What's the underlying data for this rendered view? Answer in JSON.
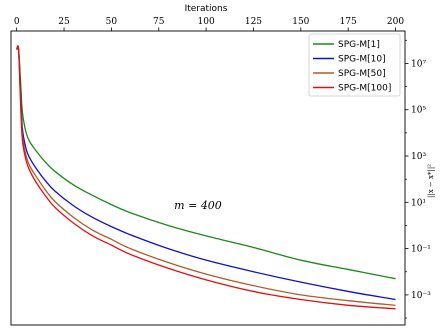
{
  "chart_data": {
    "type": "line",
    "xlabel": "Iterations",
    "ylabel": "||x − x*||²",
    "xlim": [
      -3,
      205
    ],
    "ylim_log10": [
      -4.3,
      8.4
    ],
    "yscale": "log",
    "x_ticks": [
      0,
      25,
      50,
      75,
      100,
      125,
      150,
      175,
      200
    ],
    "y_ticks": [
      {
        "exp": 7,
        "label": "10⁷"
      },
      {
        "exp": 5,
        "label": "10⁵"
      },
      {
        "exp": 3,
        "label": "10³"
      },
      {
        "exp": 1,
        "label": "10¹"
      },
      {
        "exp": -1,
        "label": "10⁻¹"
      },
      {
        "exp": -3,
        "label": "10⁻³"
      }
    ],
    "x_axis_position": "top",
    "y_axis_position": "right",
    "grid": false,
    "legend_position": "top-right",
    "annotation": "m = 400",
    "x": [
      0,
      1,
      2,
      3,
      5,
      7,
      10,
      15,
      20,
      30,
      40,
      50,
      60,
      80,
      100,
      125,
      150,
      175,
      200
    ],
    "series": [
      {
        "name": "SPG-M[1]",
        "color": "#1a8a1a",
        "log10_values": [
          7.6,
          7.6,
          6.3,
          4.9,
          4.0,
          3.6,
          3.25,
          2.75,
          2.35,
          1.75,
          1.3,
          0.9,
          0.55,
          0.0,
          -0.45,
          -0.95,
          -1.5,
          -1.9,
          -2.3
        ]
      },
      {
        "name": "SPG-M[10]",
        "color": "#1010cc",
        "log10_values": [
          7.6,
          7.6,
          5.9,
          4.2,
          3.3,
          2.9,
          2.5,
          1.95,
          1.5,
          0.85,
          0.35,
          -0.05,
          -0.4,
          -1.0,
          -1.5,
          -2.0,
          -2.45,
          -2.85,
          -3.2
        ]
      },
      {
        "name": "SPG-M[50]",
        "color": "#b05a28",
        "log10_values": [
          7.6,
          7.6,
          5.6,
          3.9,
          3.0,
          2.55,
          2.15,
          1.55,
          1.05,
          0.35,
          -0.2,
          -0.6,
          -1.0,
          -1.6,
          -2.1,
          -2.6,
          -3.0,
          -3.25,
          -3.45
        ]
      },
      {
        "name": "SPG-M[100]",
        "color": "#dd1111",
        "log10_values": [
          7.6,
          7.6,
          5.4,
          3.7,
          2.8,
          2.35,
          1.9,
          1.3,
          0.8,
          0.1,
          -0.45,
          -0.85,
          -1.25,
          -1.85,
          -2.35,
          -2.85,
          -3.2,
          -3.45,
          -3.6
        ]
      }
    ]
  }
}
